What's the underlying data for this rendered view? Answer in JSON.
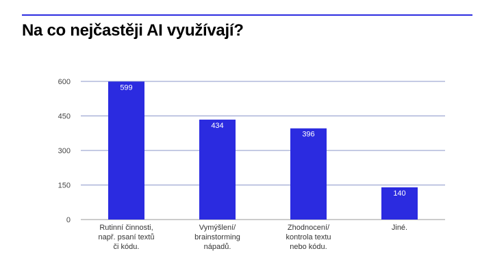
{
  "slide": {
    "title": "Na co nejčastěji AI využívají?",
    "accent": "#2b2be0"
  },
  "chart_data": {
    "type": "bar",
    "title": "",
    "xlabel": "",
    "ylabel": "",
    "ylim": [
      0,
      600
    ],
    "yticks": [
      0,
      150,
      300,
      450,
      600
    ],
    "grid": true,
    "bar_color": "#2b2be0",
    "categories": [
      [
        "Rutinní činnosti,",
        "např. psaní textů",
        "či kódu."
      ],
      [
        "Vymýšlení/",
        "brainstorming",
        "nápadů."
      ],
      [
        "Zhodnocení/",
        "kontrola textu",
        "nebo kódu."
      ],
      [
        "Jiné."
      ]
    ],
    "values": [
      599,
      434,
      396,
      140
    ],
    "data_labels": [
      "599",
      "434",
      "396",
      "140"
    ]
  }
}
